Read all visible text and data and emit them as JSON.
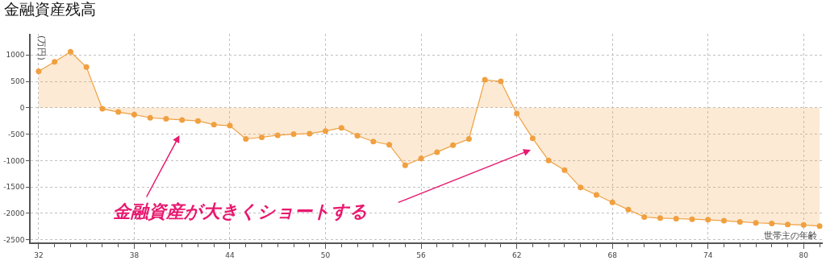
{
  "chart_data": {
    "type": "area",
    "title": "金融資産残高",
    "ylabel": "(万円)",
    "xlabel": "世帯主の年齢",
    "x": [
      32,
      33,
      34,
      35,
      36,
      37,
      38,
      39,
      40,
      41,
      42,
      43,
      44,
      45,
      46,
      47,
      48,
      49,
      50,
      51,
      52,
      53,
      54,
      55,
      56,
      57,
      58,
      59,
      60,
      61,
      62,
      63,
      64,
      65,
      66,
      67,
      68,
      69,
      70,
      71,
      72,
      73,
      74,
      75,
      76,
      77,
      78,
      79,
      80,
      81
    ],
    "series": [
      {
        "color": "#f0a040",
        "values": [
          690,
          870,
          1060,
          770,
          -20,
          -80,
          -130,
          -190,
          -210,
          -230,
          -250,
          -320,
          -340,
          -590,
          -560,
          -520,
          -500,
          -490,
          -440,
          -380,
          -530,
          -640,
          -700,
          -1090,
          -960,
          -840,
          -710,
          -590,
          530,
          500,
          -110,
          -580,
          -1000,
          -1180,
          -1510,
          -1650,
          -1790,
          -1930,
          -2070,
          -2090,
          -2100,
          -2110,
          -2120,
          -2140,
          -2160,
          -2180,
          -2190,
          -2210,
          -2220,
          -2240
        ]
      }
    ],
    "xlim": [
      31.5,
      81.2
    ],
    "xticks": [
      32,
      38,
      44,
      50,
      56,
      62,
      68,
      74,
      80
    ],
    "ylim": [
      -2550,
      1400
    ],
    "yticks": [
      -2500,
      -2000,
      -1500,
      -1000,
      -500,
      0,
      500,
      1000
    ],
    "grid": true,
    "marker": "circle",
    "line_style": "solid",
    "annotations": [
      "金融資産が大きくショートする"
    ]
  }
}
